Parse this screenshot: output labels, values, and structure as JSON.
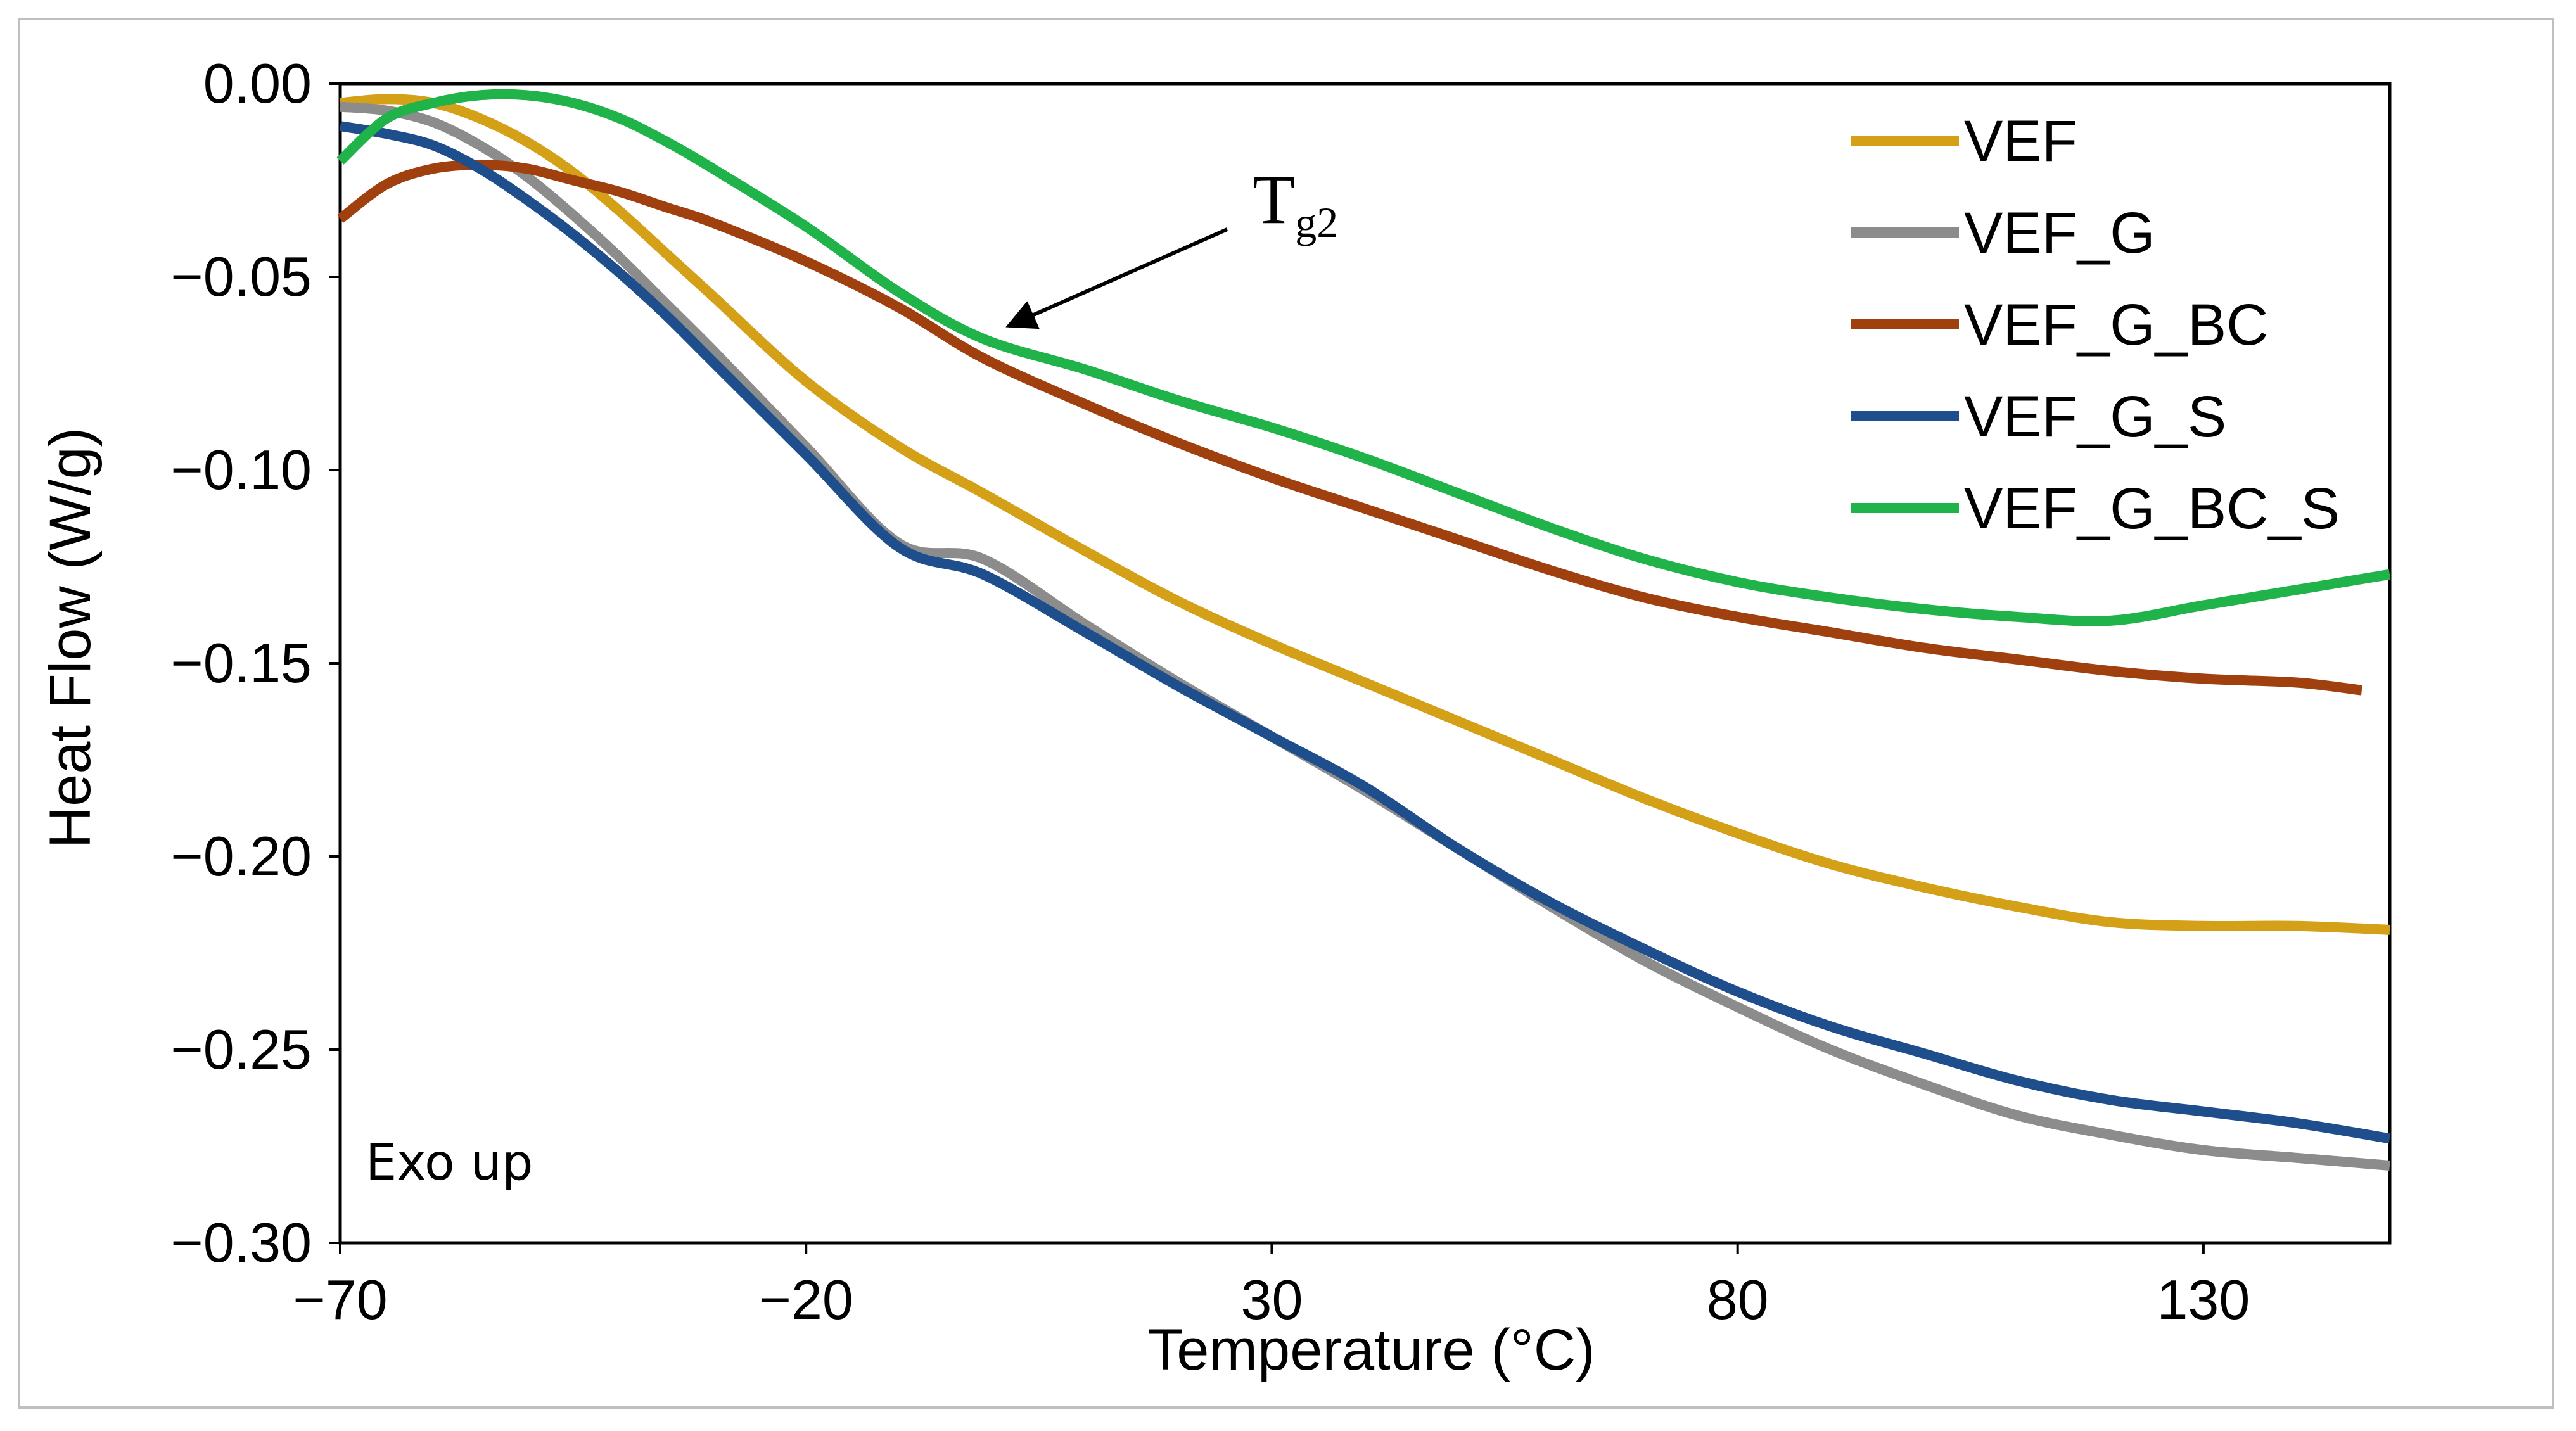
{
  "chart_data": {
    "type": "line",
    "title": "",
    "xlabel": "Temperature (°C)",
    "ylabel": "Heat Flow  (W/g)",
    "xlim": [
      -70,
      150
    ],
    "ylim": [
      -0.3,
      0.0
    ],
    "x_ticks": [
      {
        "value": -70,
        "label": "−70"
      },
      {
        "value": -20,
        "label": "−20"
      },
      {
        "value": 30,
        "label": "30"
      },
      {
        "value": 80,
        "label": "80"
      },
      {
        "value": 130,
        "label": "130"
      }
    ],
    "y_ticks": [
      {
        "value": 0.0,
        "label": "0.00"
      },
      {
        "value": -0.05,
        "label": "−0.05"
      },
      {
        "value": -0.1,
        "label": "−0.10"
      },
      {
        "value": -0.15,
        "label": "−0.15"
      },
      {
        "value": -0.2,
        "label": "−0.20"
      },
      {
        "value": -0.25,
        "label": "−0.25"
      },
      {
        "value": -0.3,
        "label": "−0.30"
      }
    ],
    "grid": false,
    "legend_position": "top-right",
    "series": [
      {
        "name": "VEF",
        "color": "#d4a017",
        "x": [
          -70,
          -65,
          -60,
          -55,
          -50,
          -45,
          -40,
          -35,
          -30,
          -20,
          -10,
          -1,
          10,
          20,
          30,
          40,
          50,
          60,
          70,
          80,
          90,
          100,
          110,
          120,
          130,
          140,
          150
        ],
        "y": [
          -0.005,
          -0.004,
          -0.005,
          -0.009,
          -0.015,
          -0.023,
          -0.033,
          -0.044,
          -0.055,
          -0.077,
          -0.094,
          -0.106,
          -0.121,
          -0.134,
          -0.145,
          -0.155,
          -0.165,
          -0.175,
          -0.185,
          -0.194,
          -0.202,
          -0.208,
          -0.213,
          -0.217,
          -0.218,
          -0.218,
          -0.219
        ]
      },
      {
        "name": "VEF_G",
        "color": "#8c8c8c",
        "x": [
          -70,
          -65,
          -60,
          -55,
          -50,
          -45,
          -40,
          -35,
          -30,
          -20,
          -10,
          -1,
          10,
          20,
          30,
          40,
          50,
          60,
          70,
          80,
          90,
          100,
          110,
          120,
          130,
          140,
          150
        ],
        "y": [
          -0.006,
          -0.007,
          -0.01,
          -0.016,
          -0.024,
          -0.034,
          -0.045,
          -0.057,
          -0.069,
          -0.094,
          -0.119,
          -0.123,
          -0.14,
          -0.155,
          -0.169,
          -0.183,
          -0.198,
          -0.213,
          -0.227,
          -0.239,
          -0.25,
          -0.259,
          -0.267,
          -0.272,
          -0.276,
          -0.278,
          -0.28
        ]
      },
      {
        "name": "VEF_G_BC",
        "color": "#a0400f",
        "x": [
          -70,
          -65,
          -60,
          -55,
          -50,
          -45,
          -40,
          -35,
          -30,
          -20,
          -10,
          -1,
          10,
          20,
          30,
          40,
          50,
          60,
          70,
          80,
          90,
          100,
          110,
          120,
          130,
          140,
          147
        ],
        "y": [
          -0.035,
          -0.026,
          -0.022,
          -0.021,
          -0.022,
          -0.025,
          -0.028,
          -0.032,
          -0.036,
          -0.046,
          -0.058,
          -0.071,
          -0.083,
          -0.093,
          -0.102,
          -0.11,
          -0.118,
          -0.126,
          -0.133,
          -0.138,
          -0.142,
          -0.146,
          -0.149,
          -0.152,
          -0.154,
          -0.155,
          -0.157
        ]
      },
      {
        "name": "VEF_G_S",
        "color": "#1f4e8c",
        "x": [
          -70,
          -65,
          -60,
          -55,
          -50,
          -45,
          -40,
          -35,
          -30,
          -20,
          -10,
          -1,
          10,
          20,
          30,
          40,
          50,
          60,
          70,
          80,
          90,
          100,
          110,
          120,
          130,
          140,
          150
        ],
        "y": [
          -0.011,
          -0.013,
          -0.016,
          -0.022,
          -0.03,
          -0.039,
          -0.049,
          -0.06,
          -0.072,
          -0.096,
          -0.12,
          -0.127,
          -0.142,
          -0.156,
          -0.169,
          -0.182,
          -0.198,
          -0.212,
          -0.224,
          -0.235,
          -0.244,
          -0.251,
          -0.258,
          -0.263,
          -0.266,
          -0.269,
          -0.273
        ]
      },
      {
        "name": "VEF_G_BC_S",
        "color": "#1fb34a",
        "x": [
          -70,
          -65,
          -60,
          -55,
          -50,
          -45,
          -40,
          -35,
          -30,
          -20,
          -10,
          -1,
          10,
          20,
          30,
          40,
          50,
          60,
          70,
          80,
          90,
          100,
          110,
          120,
          130,
          140,
          150
        ],
        "y": [
          -0.02,
          -0.009,
          -0.005,
          -0.003,
          -0.003,
          -0.005,
          -0.009,
          -0.015,
          -0.022,
          -0.037,
          -0.054,
          -0.066,
          -0.074,
          -0.082,
          -0.089,
          -0.097,
          -0.106,
          -0.115,
          -0.123,
          -0.129,
          -0.133,
          -0.136,
          -0.138,
          -0.139,
          -0.135,
          -0.131,
          -0.127
        ]
      }
    ],
    "annotations": [
      {
        "text": "T",
        "subscript": "g2",
        "x": -1,
        "y": -0.066
      },
      {
        "text": "Exo up"
      }
    ]
  }
}
